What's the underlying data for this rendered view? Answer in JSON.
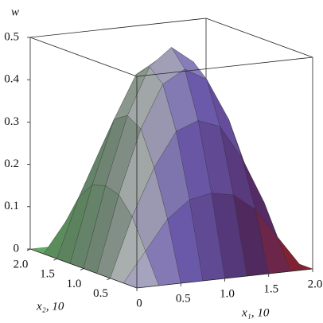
{
  "chart_data": {
    "type": "surface",
    "x_label": "x₁, 10",
    "y_label": "x₂, 10",
    "z_label": "w",
    "x": [
      0,
      0.25,
      0.5,
      0.75,
      1,
      1.25,
      1.5,
      1.75,
      2
    ],
    "y": [
      0,
      0.25,
      0.5,
      0.75,
      1,
      1.25,
      1.5,
      1.75,
      2
    ],
    "z": [
      [
        0,
        0,
        0,
        0,
        0,
        0,
        0,
        0,
        0
      ],
      [
        0,
        0.07,
        0.14,
        0.18,
        0.19,
        0.18,
        0.14,
        0.07,
        0
      ],
      [
        0,
        0.14,
        0.25,
        0.33,
        0.35,
        0.33,
        0.25,
        0.14,
        0
      ],
      [
        0,
        0.18,
        0.33,
        0.43,
        0.46,
        0.43,
        0.33,
        0.18,
        0
      ],
      [
        0,
        0.19,
        0.35,
        0.46,
        0.5,
        0.46,
        0.35,
        0.19,
        0
      ],
      [
        0,
        0.18,
        0.33,
        0.43,
        0.46,
        0.43,
        0.33,
        0.18,
        0
      ],
      [
        0,
        0.14,
        0.25,
        0.33,
        0.35,
        0.33,
        0.25,
        0.14,
        0
      ],
      [
        0,
        0.07,
        0.14,
        0.18,
        0.19,
        0.18,
        0.14,
        0.07,
        0
      ],
      [
        0,
        0,
        0,
        0,
        0,
        0,
        0,
        0,
        0
      ]
    ],
    "xlim": [
      0,
      2
    ],
    "ylim": [
      0,
      2
    ],
    "zlim": [
      0,
      0.5
    ],
    "xticks": [
      0,
      0.5,
      {
        "value": 1,
        "label": "1.0"
      },
      1.5,
      {
        "value": 2,
        "label": "2.0"
      }
    ],
    "yticks": [
      0.5,
      {
        "value": 1,
        "label": "1.0"
      },
      1.5,
      {
        "value": 2,
        "label": "2.0"
      }
    ],
    "zticks": [
      0,
      0.1,
      0.2,
      0.3,
      0.4,
      0.5
    ]
  }
}
